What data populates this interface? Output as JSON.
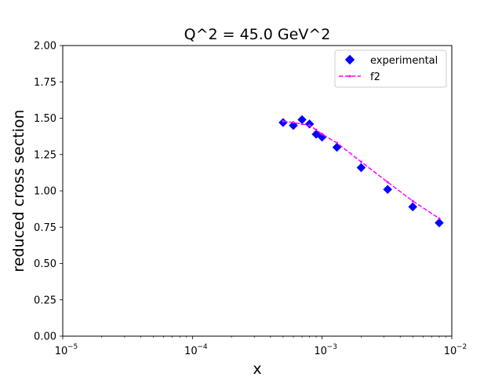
{
  "chart_data": {
    "type": "scatter",
    "title": "Q^2 = 45.0 GeV^2",
    "xlabel": "x",
    "ylabel": "reduced cross section",
    "xscale": "log",
    "xlim": [
      1e-05,
      0.01
    ],
    "ylim": [
      0.0,
      2.0
    ],
    "x_tick_labels": [
      {
        "value": 1e-05,
        "base": "10",
        "exp": "−5"
      },
      {
        "value": 0.0001,
        "base": "10",
        "exp": "−4"
      },
      {
        "value": 0.001,
        "base": "10",
        "exp": "−3"
      },
      {
        "value": 0.01,
        "base": "10",
        "exp": "−2"
      }
    ],
    "y_ticks": [
      0.0,
      0.25,
      0.5,
      0.75,
      1.0,
      1.25,
      1.5,
      1.75,
      2.0
    ],
    "y_tick_labels": [
      "0.00",
      "0.25",
      "0.50",
      "0.75",
      "1.00",
      "1.25",
      "1.50",
      "1.75",
      "2.00"
    ],
    "grid": false,
    "legend_position": "top-right",
    "series": [
      {
        "name": "experimental",
        "kind": "scatter",
        "marker": "diamond",
        "color": "#0000ff",
        "x": [
          0.0005,
          0.0006,
          0.0007,
          0.0008,
          0.0009,
          0.001,
          0.0013,
          0.002,
          0.0032,
          0.005,
          0.008
        ],
        "y": [
          1.47,
          1.45,
          1.49,
          1.46,
          1.39,
          1.37,
          1.3,
          1.16,
          1.01,
          0.89,
          0.78
        ]
      },
      {
        "name": "f2",
        "kind": "line",
        "linestyle": "dashed",
        "marker": "point",
        "color": "#ff00ff",
        "x": [
          0.0005,
          0.0006,
          0.0007,
          0.0008,
          0.0009,
          0.001,
          0.0013,
          0.002,
          0.0032,
          0.005,
          0.008
        ],
        "y": [
          1.48,
          1.47,
          1.46,
          1.45,
          1.42,
          1.39,
          1.33,
          1.2,
          1.06,
          0.93,
          0.81
        ]
      }
    ]
  }
}
